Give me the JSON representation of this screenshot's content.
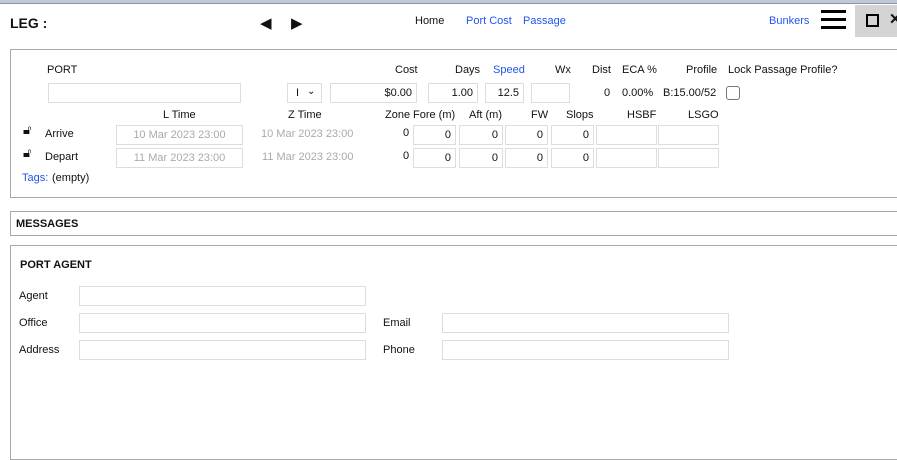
{
  "header": {
    "title": "LEG :",
    "prev_icon": "triangle-left",
    "next_icon": "triangle-right",
    "nav": {
      "home": "Home",
      "port_cost": "Port Cost",
      "passage": "Passage",
      "bunkers": "Bunkers"
    }
  },
  "leg": {
    "labels": {
      "port": "PORT",
      "cost": "Cost",
      "days": "Days",
      "speed": "Speed",
      "wx": "Wx",
      "dist": "Dist",
      "eca": "ECA %",
      "profile": "Profile",
      "lock": "Lock Passage Profile?",
      "ltime": "L Time",
      "ztime": "Z Time",
      "zone": "Zone",
      "fore": "Fore (m)",
      "aft": "Aft (m)",
      "fw": "FW",
      "slops": "Slops",
      "hsbf": "HSBF",
      "lsgo": "LSGO"
    },
    "port": "",
    "type_select": "I",
    "cost": "$0.00",
    "days": "1.00",
    "speed": "12.5",
    "wx": "",
    "dist": "0",
    "eca": "0.00%",
    "profile": "B:15.00/52",
    "lock_checked": false,
    "rows": [
      {
        "label": "Arrive",
        "ltime": "10 Mar 2023 23:00",
        "ztime": "10 Mar 2023 23:00",
        "zone": "0",
        "fore": "0",
        "aft": "0",
        "fw": "0",
        "slops": "0",
        "hsbf": "",
        "lsgo": ""
      },
      {
        "label": "Depart",
        "ltime": "11 Mar 2023 23:00",
        "ztime": "11 Mar 2023 23:00",
        "zone": "0",
        "fore": "0",
        "aft": "0",
        "fw": "0",
        "slops": "0",
        "hsbf": "",
        "lsgo": ""
      }
    ],
    "tags_label": "Tags:",
    "tags_value": "(empty)"
  },
  "messages": {
    "title": "MESSAGES"
  },
  "agent": {
    "title": "PORT AGENT",
    "agent": "Agent",
    "office": "Office",
    "address": "Address",
    "email": "Email",
    "phone": "Phone",
    "values": {
      "agent": "",
      "office": "",
      "address": "",
      "email": "",
      "phone": ""
    }
  }
}
